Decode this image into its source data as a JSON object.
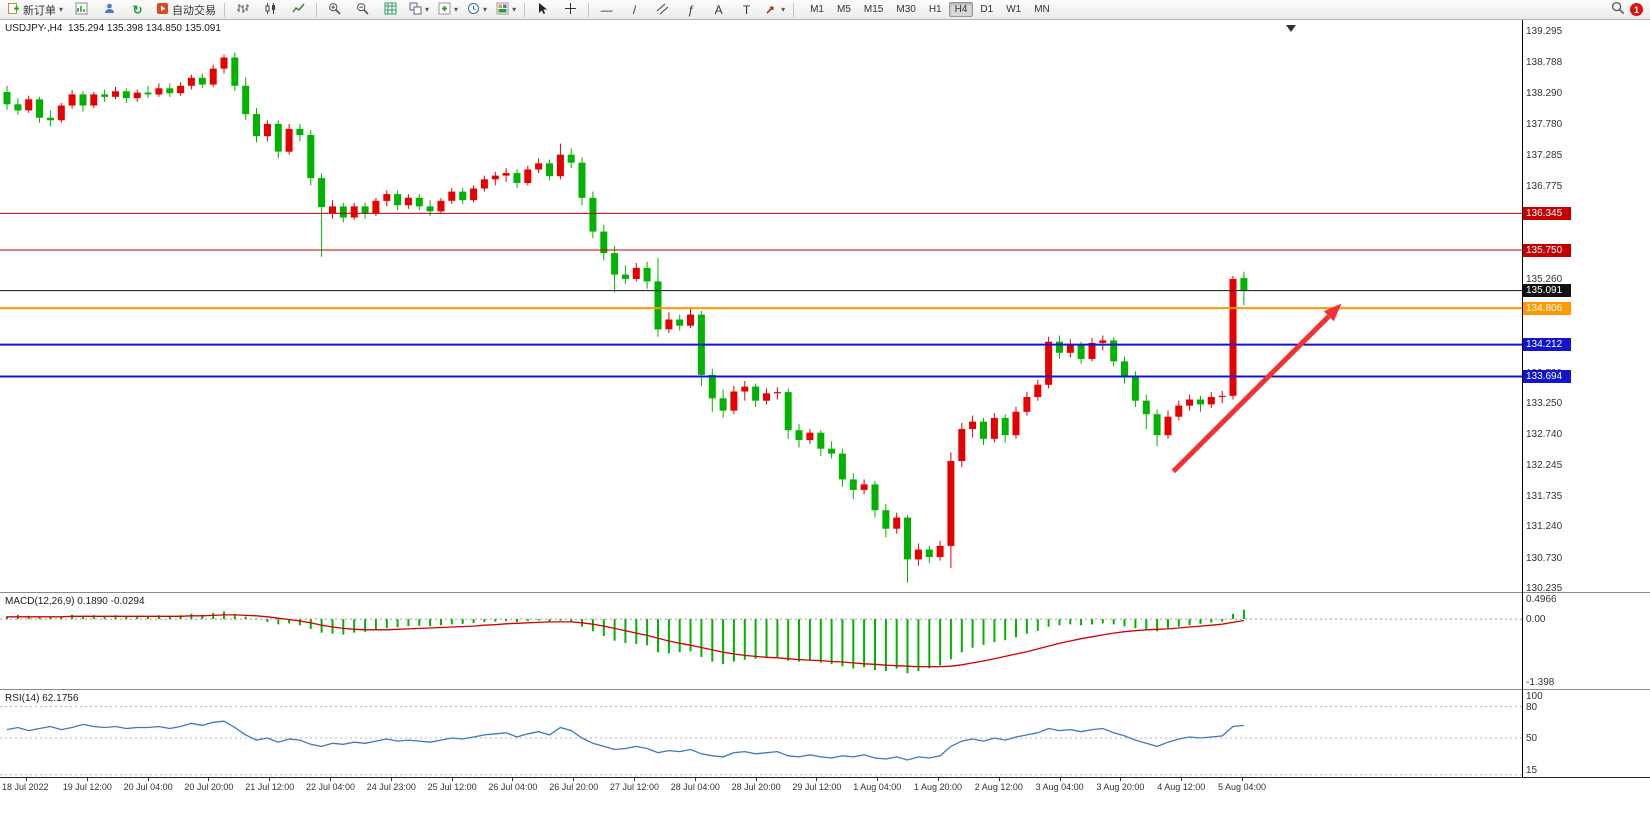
{
  "toolbar": {
    "new_order": "新订单",
    "autotrading": "自动交易",
    "timeframes": [
      "M1",
      "M5",
      "M15",
      "M30",
      "H1",
      "H4",
      "D1",
      "W1",
      "MN"
    ],
    "active_timeframe": "H4",
    "notification_count": "1",
    "glyphs": {
      "caret": "▾",
      "refresh": "↻",
      "hline": "—",
      "trendline": "/",
      "channel": "∥",
      "fibo": "ƒ",
      "text_tool": "A",
      "label_tool": "T"
    }
  },
  "chart": {
    "title": "USDJPY-,H4  135.294 135.398 134.850 135.091",
    "up_color": "#e60000",
    "down_color": "#00b300",
    "ylim": [
      130.19,
      139.49
    ],
    "price_axis_ticks": [
      "139.295",
      "138.788",
      "138.290",
      "137.780",
      "137.285",
      "136.775",
      "136.265",
      "135.760",
      "135.260",
      "134.750",
      "134.240",
      "133.730",
      "133.250",
      "132.740",
      "132.245",
      "131.735",
      "131.240",
      "130.730",
      "130.235"
    ],
    "hlines": [
      {
        "price": 136.345,
        "label": "136.345",
        "color": "#c40000",
        "width": 1
      },
      {
        "price": 135.75,
        "label": "135.750",
        "color": "#c40000",
        "width": 1
      },
      {
        "price": 135.091,
        "label": "135.091",
        "color": "#111111",
        "width": 1
      },
      {
        "price": 134.806,
        "label": "134.806",
        "color": "#ff9900",
        "width": 2
      },
      {
        "price": 134.212,
        "label": "134.212",
        "color": "#1414cc",
        "width": 2
      },
      {
        "price": 133.694,
        "label": "133.694",
        "color": "#1414cc",
        "width": 2
      }
    ],
    "arrow": {
      "color": "#f23030",
      "from": {
        "bar": 107.5,
        "price": 132.15
      },
      "to": {
        "bar": 123,
        "price": 134.88
      }
    }
  },
  "chart_data": {
    "type": "candlestick",
    "symbol": "USDJPY-",
    "timeframe": "H4",
    "current_bar": {
      "open": 135.294,
      "high": 135.398,
      "low": 134.85,
      "close": 135.091
    },
    "ohlc": [
      [
        138.32,
        138.42,
        138.03,
        138.12
      ],
      [
        138.12,
        138.22,
        137.95,
        138.02
      ],
      [
        138.02,
        138.26,
        137.98,
        138.2
      ],
      [
        138.2,
        138.24,
        137.82,
        137.9
      ],
      [
        137.9,
        138.02,
        137.76,
        137.86
      ],
      [
        137.86,
        138.14,
        137.82,
        138.1
      ],
      [
        138.1,
        138.35,
        138.05,
        138.28
      ],
      [
        138.28,
        138.33,
        138.0,
        138.1
      ],
      [
        138.1,
        138.32,
        138.06,
        138.28
      ],
      [
        138.28,
        138.36,
        138.16,
        138.24
      ],
      [
        138.24,
        138.4,
        138.2,
        138.33
      ],
      [
        138.33,
        138.38,
        138.14,
        138.22
      ],
      [
        138.22,
        138.36,
        138.16,
        138.31
      ],
      [
        138.31,
        138.42,
        138.22,
        138.28
      ],
      [
        138.28,
        138.46,
        138.24,
        138.38
      ],
      [
        138.38,
        138.46,
        138.24,
        138.3
      ],
      [
        138.3,
        138.48,
        138.26,
        138.42
      ],
      [
        138.42,
        138.6,
        138.36,
        138.55
      ],
      [
        138.55,
        138.62,
        138.38,
        138.44
      ],
      [
        138.44,
        138.76,
        138.4,
        138.7
      ],
      [
        138.7,
        138.93,
        138.62,
        138.88
      ],
      [
        138.88,
        138.96,
        138.34,
        138.42
      ],
      [
        138.42,
        138.56,
        137.86,
        137.96
      ],
      [
        137.96,
        138.06,
        137.5,
        137.6
      ],
      [
        137.6,
        137.86,
        137.52,
        137.8
      ],
      [
        137.8,
        137.86,
        137.24,
        137.35
      ],
      [
        137.35,
        137.8,
        137.3,
        137.72
      ],
      [
        137.72,
        137.8,
        137.52,
        137.62
      ],
      [
        137.62,
        137.7,
        136.8,
        136.92
      ],
      [
        136.92,
        137.0,
        135.64,
        136.45
      ],
      [
        136.35,
        136.56,
        136.26,
        136.46
      ],
      [
        136.46,
        136.52,
        136.2,
        136.28
      ],
      [
        136.28,
        136.52,
        136.24,
        136.46
      ],
      [
        136.46,
        136.52,
        136.26,
        136.34
      ],
      [
        136.34,
        136.6,
        136.3,
        136.55
      ],
      [
        136.55,
        136.72,
        136.46,
        136.66
      ],
      [
        136.66,
        136.72,
        136.4,
        136.48
      ],
      [
        136.48,
        136.66,
        136.42,
        136.6
      ],
      [
        136.6,
        136.66,
        136.4,
        136.46
      ],
      [
        136.46,
        136.56,
        136.3,
        136.38
      ],
      [
        136.38,
        136.6,
        136.34,
        136.55
      ],
      [
        136.55,
        136.76,
        136.5,
        136.7
      ],
      [
        136.7,
        136.76,
        136.5,
        136.56
      ],
      [
        136.56,
        136.8,
        136.52,
        136.75
      ],
      [
        136.75,
        136.96,
        136.7,
        136.9
      ],
      [
        136.9,
        137.02,
        136.8,
        136.96
      ],
      [
        136.96,
        137.08,
        136.86,
        137.0
      ],
      [
        137.0,
        137.06,
        136.76,
        136.84
      ],
      [
        136.84,
        137.12,
        136.8,
        137.06
      ],
      [
        137.06,
        137.24,
        137.0,
        137.16
      ],
      [
        137.16,
        137.22,
        136.88,
        136.95
      ],
      [
        136.95,
        137.48,
        136.9,
        137.3
      ],
      [
        137.3,
        137.4,
        137.08,
        137.17
      ],
      [
        137.17,
        137.26,
        136.48,
        136.6
      ],
      [
        136.6,
        136.7,
        135.94,
        136.05
      ],
      [
        136.05,
        136.16,
        135.58,
        135.7
      ],
      [
        135.7,
        135.82,
        135.06,
        135.35
      ],
      [
        135.35,
        135.5,
        135.2,
        135.28
      ],
      [
        135.28,
        135.54,
        135.24,
        135.46
      ],
      [
        135.46,
        135.56,
        135.12,
        135.24
      ],
      [
        135.24,
        135.62,
        134.34,
        134.46
      ],
      [
        134.46,
        134.74,
        134.4,
        134.62
      ],
      [
        134.62,
        134.7,
        134.44,
        134.52
      ],
      [
        134.52,
        134.8,
        134.48,
        134.7
      ],
      [
        134.7,
        134.76,
        133.54,
        133.72
      ],
      [
        133.72,
        133.82,
        133.12,
        133.34
      ],
      [
        133.34,
        133.48,
        133.02,
        133.14
      ],
      [
        133.14,
        133.54,
        133.08,
        133.45
      ],
      [
        133.45,
        133.62,
        133.3,
        133.53
      ],
      [
        133.53,
        133.58,
        133.2,
        133.3
      ],
      [
        133.3,
        133.5,
        133.24,
        133.42
      ],
      [
        133.42,
        133.52,
        133.32,
        133.44
      ],
      [
        133.44,
        133.5,
        132.68,
        132.82
      ],
      [
        132.82,
        132.92,
        132.54,
        132.66
      ],
      [
        132.66,
        132.84,
        132.6,
        132.78
      ],
      [
        132.78,
        132.82,
        132.4,
        132.52
      ],
      [
        132.52,
        132.64,
        132.36,
        132.44
      ],
      [
        132.44,
        132.52,
        131.9,
        132.02
      ],
      [
        132.02,
        132.12,
        131.7,
        131.85
      ],
      [
        131.85,
        132.02,
        131.78,
        131.94
      ],
      [
        131.94,
        132.0,
        131.4,
        131.52
      ],
      [
        131.52,
        131.62,
        131.08,
        131.22
      ],
      [
        131.22,
        131.48,
        131.14,
        131.4
      ],
      [
        131.4,
        131.44,
        130.34,
        130.72
      ],
      [
        130.72,
        130.98,
        130.62,
        130.88
      ],
      [
        130.88,
        130.94,
        130.66,
        130.76
      ],
      [
        130.76,
        131.02,
        130.7,
        130.94
      ],
      [
        130.94,
        132.46,
        130.58,
        132.32
      ],
      [
        132.32,
        132.94,
        132.22,
        132.84
      ],
      [
        132.84,
        133.06,
        132.7,
        132.96
      ],
      [
        132.96,
        133.02,
        132.58,
        132.68
      ],
      [
        132.68,
        133.1,
        132.62,
        133.02
      ],
      [
        133.02,
        133.08,
        132.62,
        132.74
      ],
      [
        132.74,
        133.2,
        132.68,
        133.12
      ],
      [
        133.12,
        133.44,
        133.06,
        133.36
      ],
      [
        133.36,
        133.64,
        133.3,
        133.56
      ],
      [
        133.56,
        134.34,
        133.5,
        134.26
      ],
      [
        134.26,
        134.36,
        133.98,
        134.08
      ],
      [
        134.08,
        134.3,
        134.0,
        134.2
      ],
      [
        134.2,
        134.26,
        133.9,
        133.98
      ],
      [
        133.98,
        134.32,
        133.94,
        134.24
      ],
      [
        134.24,
        134.36,
        134.12,
        134.28
      ],
      [
        134.28,
        134.34,
        133.86,
        133.94
      ],
      [
        133.94,
        134.02,
        133.58,
        133.68
      ],
      [
        133.68,
        133.78,
        133.2,
        133.3
      ],
      [
        133.3,
        133.4,
        132.84,
        133.08
      ],
      [
        133.08,
        133.16,
        132.56,
        132.74
      ],
      [
        132.74,
        133.14,
        132.68,
        133.04
      ],
      [
        133.04,
        133.3,
        132.98,
        133.22
      ],
      [
        133.22,
        133.4,
        133.14,
        133.32
      ],
      [
        133.32,
        133.38,
        133.12,
        133.24
      ],
      [
        133.24,
        133.44,
        133.18,
        133.36
      ],
      [
        133.36,
        133.46,
        133.26,
        133.38
      ],
      [
        133.38,
        135.33,
        133.32,
        135.28
      ],
      [
        135.294,
        135.398,
        134.85,
        135.091
      ]
    ],
    "x_labels": [
      "18 Jul 2022",
      "19 Jul 12:00",
      "20 Jul 04:00",
      "20 Jul 20:00",
      "21 Jul 12:00",
      "22 Jul 04:00",
      "24 Jul 23:00",
      "25 Jul 12:00",
      "26 Jul 04:00",
      "26 Jul 20:00",
      "27 Jul 12:00",
      "28 Jul 04:00",
      "28 Jul 20:00",
      "29 Jul 12:00",
      "1 Aug 04:00",
      "1 Aug 20:00",
      "2 Aug 12:00",
      "3 Aug 04:00",
      "3 Aug 20:00",
      "4 Aug 12:00",
      "5 Aug 04:00"
    ],
    "macd": {
      "label": "MACD(12,26,9) 0.1890 -0.0294",
      "hist_color": "#00b300",
      "signal_color": "#d40000",
      "scale_labels": [
        "0.4966",
        "0.00",
        "-1.398"
      ],
      "histogram": [
        0.05,
        0.08,
        0.06,
        0.04,
        0.03,
        0.05,
        0.08,
        0.06,
        0.07,
        0.06,
        0.07,
        0.05,
        0.06,
        0.05,
        0.07,
        0.05,
        0.07,
        0.1,
        0.08,
        0.12,
        0.15,
        0.1,
        0.04,
        0.0,
        -0.05,
        -0.1,
        -0.08,
        -0.12,
        -0.2,
        -0.28,
        -0.3,
        -0.32,
        -0.28,
        -0.26,
        -0.22,
        -0.18,
        -0.16,
        -0.14,
        -0.13,
        -0.14,
        -0.12,
        -0.1,
        -0.09,
        -0.07,
        -0.05,
        -0.04,
        -0.03,
        -0.05,
        -0.03,
        -0.02,
        -0.04,
        -0.02,
        -0.05,
        -0.15,
        -0.25,
        -0.35,
        -0.45,
        -0.5,
        -0.52,
        -0.55,
        -0.7,
        -0.72,
        -0.7,
        -0.68,
        -0.8,
        -0.9,
        -0.95,
        -0.9,
        -0.86,
        -0.84,
        -0.82,
        -0.8,
        -0.88,
        -0.9,
        -0.88,
        -0.92,
        -0.95,
        -1.0,
        -1.05,
        -1.02,
        -1.08,
        -1.1,
        -1.05,
        -1.15,
        -1.1,
        -1.04,
        -0.98,
        -0.85,
        -0.7,
        -0.6,
        -0.54,
        -0.48,
        -0.44,
        -0.38,
        -0.3,
        -0.24,
        -0.15,
        -0.12,
        -0.1,
        -0.12,
        -0.1,
        -0.08,
        -0.1,
        -0.14,
        -0.18,
        -0.22,
        -0.25,
        -0.2,
        -0.15,
        -0.12,
        -0.09,
        -0.06,
        -0.04,
        0.1,
        0.189
      ],
      "signal": [
        0.05,
        0.05,
        0.05,
        0.05,
        0.05,
        0.05,
        0.06,
        0.06,
        0.06,
        0.06,
        0.06,
        0.06,
        0.06,
        0.06,
        0.06,
        0.06,
        0.06,
        0.07,
        0.07,
        0.08,
        0.09,
        0.09,
        0.08,
        0.07,
        0.05,
        0.02,
        -0.01,
        -0.04,
        -0.08,
        -0.13,
        -0.17,
        -0.2,
        -0.22,
        -0.23,
        -0.23,
        -0.23,
        -0.22,
        -0.21,
        -0.2,
        -0.19,
        -0.18,
        -0.17,
        -0.16,
        -0.15,
        -0.13,
        -0.12,
        -0.1,
        -0.09,
        -0.08,
        -0.07,
        -0.06,
        -0.06,
        -0.06,
        -0.08,
        -0.11,
        -0.15,
        -0.2,
        -0.25,
        -0.3,
        -0.35,
        -0.41,
        -0.47,
        -0.52,
        -0.56,
        -0.61,
        -0.66,
        -0.71,
        -0.75,
        -0.78,
        -0.8,
        -0.82,
        -0.83,
        -0.85,
        -0.87,
        -0.88,
        -0.89,
        -0.91,
        -0.92,
        -0.94,
        -0.96,
        -0.97,
        -0.99,
        -1.0,
        -1.01,
        -1.02,
        -1.02,
        -1.02,
        -1.01,
        -0.98,
        -0.94,
        -0.9,
        -0.85,
        -0.8,
        -0.75,
        -0.7,
        -0.64,
        -0.58,
        -0.52,
        -0.47,
        -0.42,
        -0.38,
        -0.34,
        -0.3,
        -0.27,
        -0.25,
        -0.23,
        -0.22,
        -0.21,
        -0.19,
        -0.17,
        -0.15,
        -0.13,
        -0.11,
        -0.07,
        -0.03
      ]
    },
    "rsi": {
      "label": "RSI(14) 62.1756",
      "color": "#3a7abf",
      "scale_labels": [
        "100",
        "80",
        "50",
        "15"
      ],
      "levels": [
        80,
        50,
        15
      ],
      "values": [
        58,
        60,
        57,
        59,
        61,
        58,
        60,
        63,
        61,
        60,
        61,
        59,
        60,
        60,
        61,
        59,
        61,
        64,
        62,
        65,
        66,
        60,
        53,
        48,
        50,
        46,
        49,
        48,
        44,
        42,
        45,
        44,
        46,
        45,
        47,
        49,
        47,
        48,
        47,
        46,
        48,
        50,
        49,
        51,
        53,
        54,
        55,
        51,
        54,
        56,
        53,
        60,
        57,
        50,
        45,
        42,
        39,
        40,
        42,
        40,
        36,
        38,
        37,
        39,
        35,
        33,
        32,
        36,
        37,
        35,
        36,
        37,
        33,
        32,
        34,
        32,
        31,
        33,
        32,
        34,
        31,
        30,
        32,
        29,
        32,
        31,
        33,
        42,
        47,
        49,
        47,
        50,
        48,
        51,
        53,
        55,
        59,
        57,
        58,
        56,
        58,
        59,
        55,
        52,
        48,
        45,
        42,
        46,
        49,
        51,
        50,
        51,
        52,
        61,
        62
      ]
    }
  }
}
